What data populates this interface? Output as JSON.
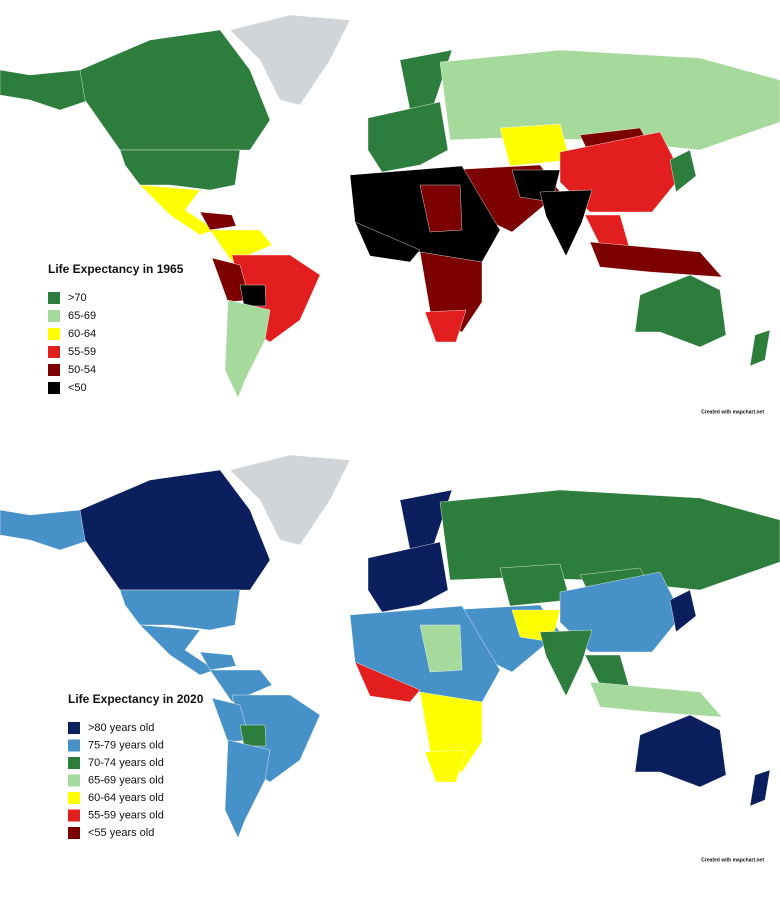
{
  "maps": [
    {
      "title": "Life Expectancy in 1965",
      "legend": [
        {
          "label": ">70",
          "color": "#2d7d3c"
        },
        {
          "label": "65-69",
          "color": "#a6d99c"
        },
        {
          "label": "60-64",
          "color": "#ffff00"
        },
        {
          "label": "55-59",
          "color": "#e31e1e"
        },
        {
          "label": "50-54",
          "color": "#7d0000"
        },
        {
          "label": "<50",
          "color": "#000000"
        }
      ],
      "credit": "Created with mapchart.net"
    },
    {
      "title": "Life Expectancy in 2020",
      "legend": [
        {
          "label": ">80 years old",
          "color": "#0b1f5e"
        },
        {
          "label": "75-79 years old",
          "color": "#4691c8"
        },
        {
          "label": "70-74 years old",
          "color": "#2d7d3c"
        },
        {
          "label": "65-69 years old",
          "color": "#a6d99c"
        },
        {
          "label": "60-64 years old",
          "color": "#ffff00"
        },
        {
          "label": "55-59 years old",
          "color": "#e31e1e"
        },
        {
          "label": "<55 years old",
          "color": "#7d0000"
        }
      ],
      "credit": "Created with mapchart.net"
    }
  ]
}
